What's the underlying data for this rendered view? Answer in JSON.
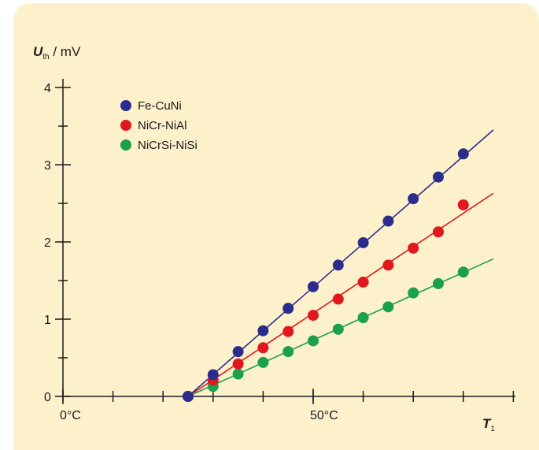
{
  "chart_data": {
    "type": "scatter",
    "title": "",
    "ylabel": {
      "main": "U",
      "sub": "th",
      "unit": " / mV"
    },
    "xlabel": {
      "main": "T",
      "sub": "1"
    },
    "xlim": [
      0,
      90
    ],
    "ylim": [
      0,
      4
    ],
    "x_ticks": [
      {
        "value": 0,
        "label": "0°C"
      },
      {
        "value": 50,
        "label": "50°C"
      }
    ],
    "y_ticks": [
      {
        "value": 0,
        "label": "0"
      },
      {
        "value": 1,
        "label": "1"
      },
      {
        "value": 2,
        "label": "2"
      },
      {
        "value": 3,
        "label": "3"
      },
      {
        "value": 4,
        "label": "4"
      }
    ],
    "series": [
      {
        "name": "Fe-CuNi",
        "color": "#2b2d8c",
        "x": [
          25,
          30,
          35,
          40,
          45,
          50,
          55,
          60,
          65,
          70,
          75,
          80
        ],
        "y": [
          0,
          0.28,
          0.58,
          0.85,
          1.14,
          1.42,
          1.7,
          1.99,
          2.27,
          2.56,
          2.84,
          3.14
        ],
        "fit": {
          "x": [
            25,
            86
          ],
          "y": [
            0,
            3.45
          ]
        }
      },
      {
        "name": "NiCr-NiAl",
        "color": "#e0181e",
        "x": [
          25,
          30,
          35,
          40,
          45,
          50,
          55,
          60,
          65,
          70,
          75,
          80
        ],
        "y": [
          0,
          0.21,
          0.42,
          0.63,
          0.84,
          1.05,
          1.26,
          1.48,
          1.7,
          1.92,
          2.13,
          2.48
        ],
        "fit": {
          "x": [
            25,
            86
          ],
          "y": [
            0,
            2.63
          ]
        }
      },
      {
        "name": "NiCrSi-NiSi",
        "color": "#1aa14a",
        "x": [
          25,
          30,
          35,
          40,
          45,
          50,
          55,
          60,
          65,
          70,
          75,
          80
        ],
        "y": [
          0,
          0.13,
          0.29,
          0.44,
          0.58,
          0.72,
          0.87,
          1.02,
          1.16,
          1.34,
          1.46,
          1.61
        ],
        "fit": {
          "x": [
            25,
            86
          ],
          "y": [
            0,
            1.78
          ]
        }
      }
    ],
    "legend": {
      "placement": "top-left"
    },
    "grid": false
  }
}
